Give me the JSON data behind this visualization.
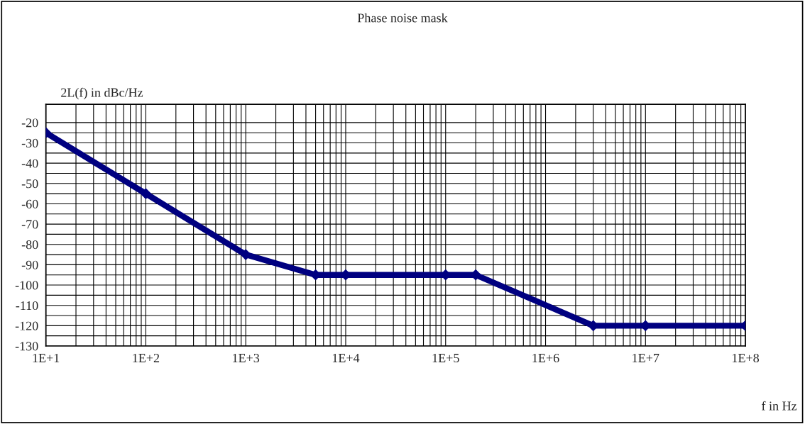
{
  "chart_data": {
    "type": "line",
    "title": "Phase noise mask",
    "xlabel": "f in Hz",
    "ylabel": "2L(f) in dBc/Hz",
    "x": [
      10,
      100,
      1000,
      5000,
      10000,
      100000,
      200000,
      3000000,
      10000000,
      100000000
    ],
    "series": [
      {
        "color": "#000080",
        "values": [
          -25,
          -55,
          -85,
          -95,
          -95,
          -95,
          -95,
          -120,
          -120,
          -120
        ]
      }
    ],
    "log": "x",
    "xlim": [
      10,
      100000000
    ],
    "xticks": [
      {
        "value": 10,
        "label": "1E+1"
      },
      {
        "value": 100,
        "label": "1E+2"
      },
      {
        "value": 1000,
        "label": "1E+3"
      },
      {
        "value": 10000,
        "label": "1E+4"
      },
      {
        "value": 100000,
        "label": "1E+5"
      },
      {
        "value": 1000000,
        "label": "1E+6"
      },
      {
        "value": 10000000,
        "label": "1E+7"
      },
      {
        "value": 100000000,
        "label": "1E+8"
      }
    ],
    "ylim": [
      -130,
      -11
    ],
    "yticks": [
      -130,
      -120,
      -110,
      -100,
      -90,
      -80,
      -70,
      -60,
      -50,
      -40,
      -30,
      -20
    ],
    "grid": true,
    "marker": "diamond",
    "line_style": "solid"
  }
}
